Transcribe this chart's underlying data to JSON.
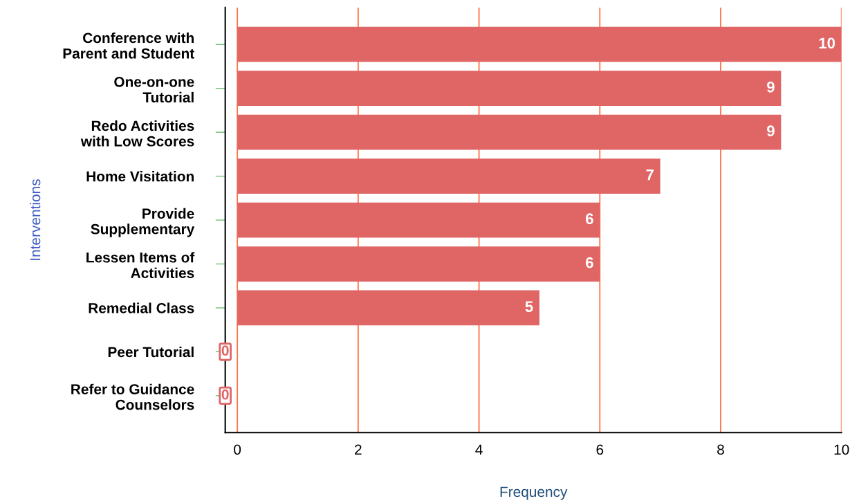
{
  "chart_data": {
    "type": "bar",
    "orientation": "horizontal",
    "xlabel": "Frequency",
    "ylabel": "Interventions",
    "categories": [
      "Conference with\nParent and Student",
      "One-on-one\nTutorial",
      "Redo Activities\nwith Low Scores",
      "Home Visitation",
      "Provide\nSupplementary",
      "Lessen Items of\nActivities",
      "Remedial Class",
      "Peer Tutorial",
      "Refer to Guidance\nCounselors"
    ],
    "values": [
      10,
      9,
      9,
      7,
      6,
      6,
      5,
      0,
      0
    ],
    "color": "#e06666",
    "xlim": [
      -0.2,
      10
    ],
    "xticks": [
      0,
      2,
      4,
      6,
      8,
      10
    ],
    "grid": "x",
    "data_labels": true,
    "legend": false
  }
}
